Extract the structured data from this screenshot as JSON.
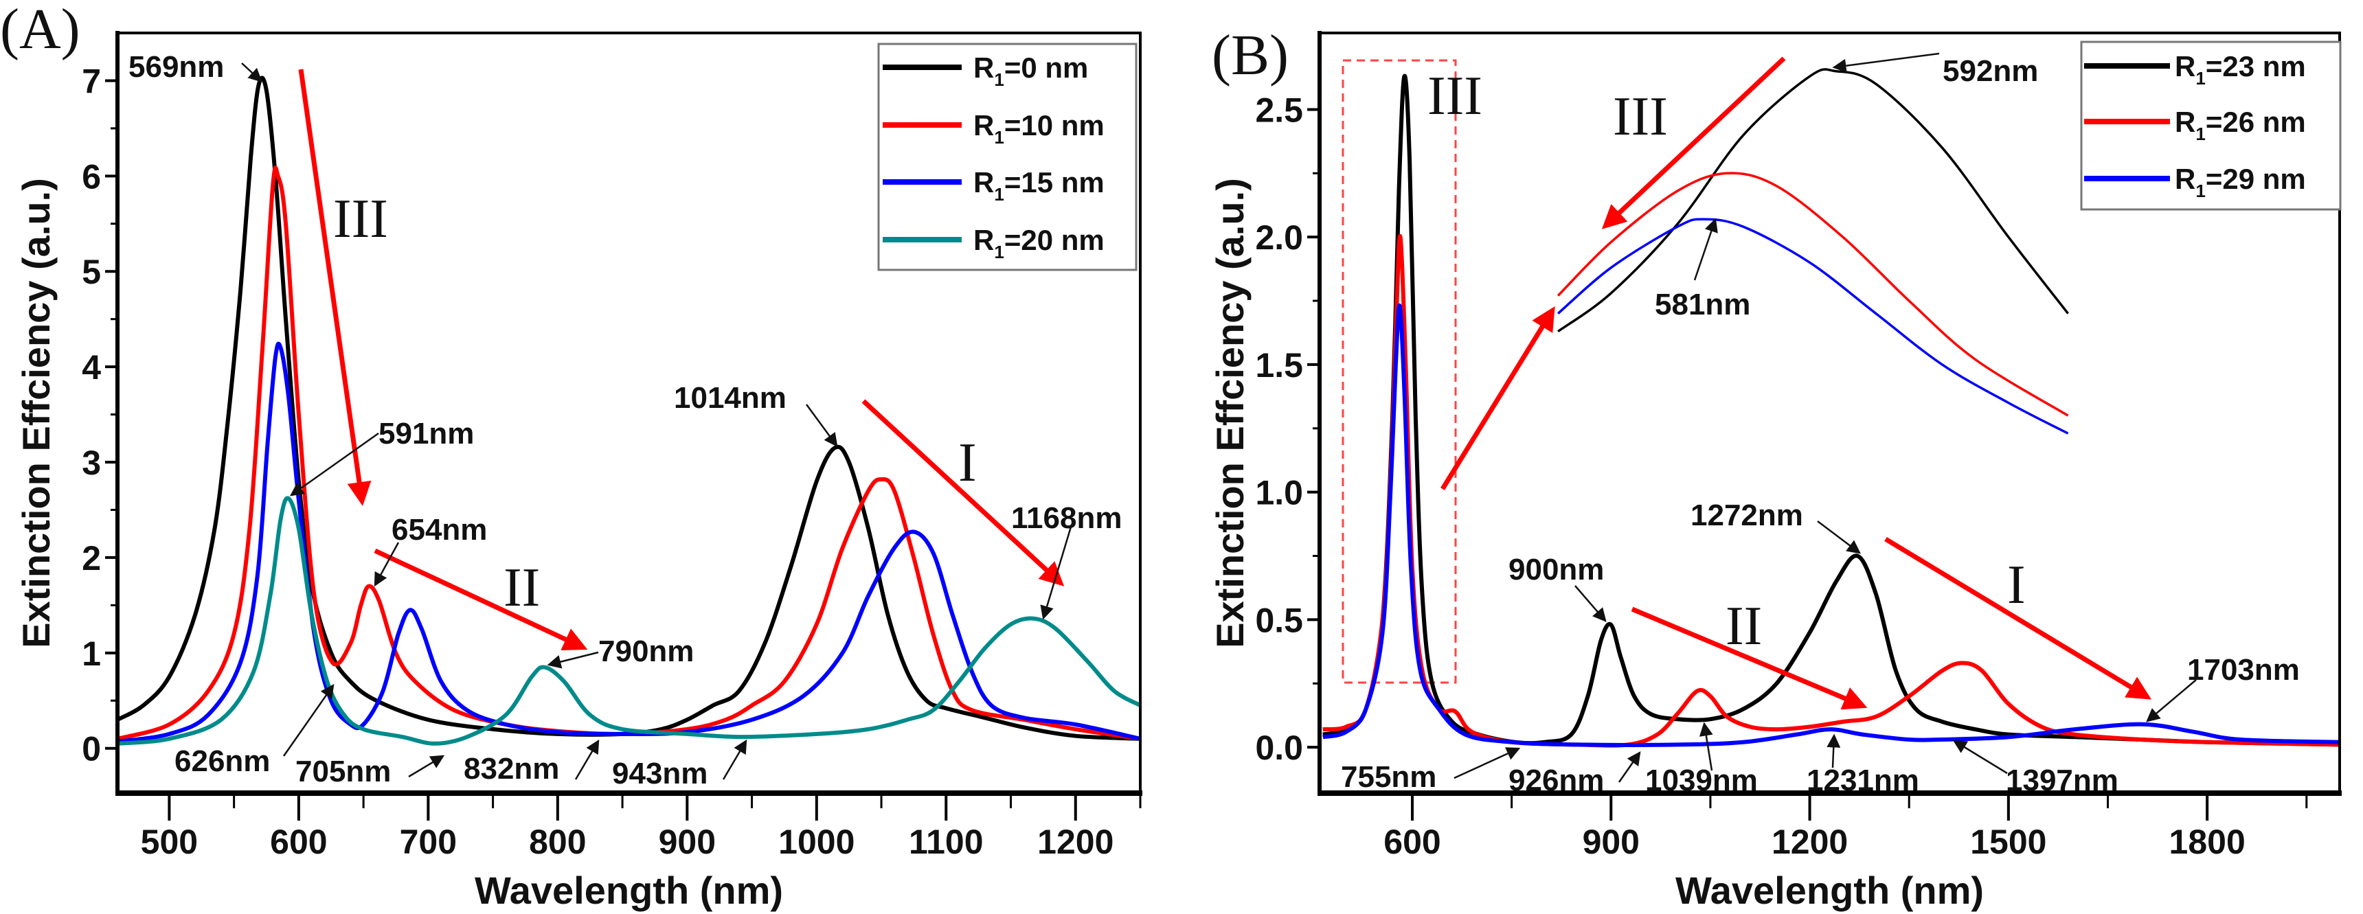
{
  "chart_data": [
    {
      "type": "line",
      "panel_label": "(A)",
      "xlabel": "Wavelength (nm)",
      "ylabel": "Extinction Effciency (a.u.)",
      "xlim": [
        460,
        1250
      ],
      "ylim": [
        -0.47,
        7.5
      ],
      "xticks": [
        "500",
        "600",
        "700",
        "800",
        "900",
        "1000",
        "1100",
        "1200"
      ],
      "xtick_values": [
        500,
        600,
        700,
        800,
        900,
        1000,
        1100,
        1200
      ],
      "xminor_values": [
        550,
        650,
        750,
        850,
        950,
        1050,
        1150,
        1250
      ],
      "yticks": [
        "0",
        "1",
        "2",
        "3",
        "4",
        "5",
        "6",
        "7"
      ],
      "ytick_values": [
        0,
        1,
        2,
        3,
        4,
        5,
        6,
        7
      ],
      "yminor_values": [
        0.5,
        1.5,
        2.5,
        3.5,
        4.5,
        5.5,
        6.5
      ],
      "legend_position": "top-right",
      "series": [
        {
          "name": "R1=0 nm",
          "label_main": "R",
          "label_sub": "1",
          "label_value": "=0 nm",
          "color": "#000000",
          "x": [
            460,
            480,
            500,
            520,
            535,
            545,
            555,
            563,
            569,
            575,
            582,
            590,
            600,
            610,
            625,
            640,
            660,
            700,
            750,
            800,
            850,
            880,
            900,
            920,
            940,
            960,
            980,
            1000,
            1014,
            1025,
            1040,
            1055,
            1070,
            1085,
            1100,
            1130,
            1160,
            1200,
            1250
          ],
          "y": [
            0.3,
            0.45,
            0.75,
            1.4,
            2.3,
            3.4,
            4.8,
            6.2,
            6.95,
            6.9,
            6.0,
            4.5,
            2.8,
            1.7,
            1.0,
            0.7,
            0.5,
            0.3,
            0.2,
            0.15,
            0.15,
            0.2,
            0.3,
            0.45,
            0.6,
            1.1,
            1.9,
            2.8,
            3.15,
            3.0,
            2.3,
            1.4,
            0.8,
            0.5,
            0.42,
            0.32,
            0.22,
            0.13,
            0.1
          ]
        },
        {
          "name": "R1=10 nm",
          "label_main": "R",
          "label_sub": "1",
          "label_value": "=10 nm",
          "color": "#ff0000",
          "x": [
            460,
            500,
            530,
            550,
            562,
            572,
            580,
            584,
            590,
            600,
            612,
            626,
            640,
            648,
            654,
            662,
            675,
            690,
            720,
            760,
            800,
            850,
            900,
            930,
            950,
            975,
            1000,
            1020,
            1040,
            1050,
            1060,
            1075,
            1090,
            1105,
            1120,
            1160,
            1200,
            1250
          ],
          "y": [
            0.1,
            0.25,
            0.6,
            1.2,
            2.3,
            4.2,
            5.9,
            6.0,
            5.5,
            3.5,
            1.6,
            0.9,
            1.1,
            1.5,
            1.7,
            1.55,
            1.0,
            0.7,
            0.4,
            0.25,
            0.18,
            0.15,
            0.2,
            0.3,
            0.45,
            0.7,
            1.3,
            2.1,
            2.7,
            2.82,
            2.7,
            2.0,
            1.2,
            0.6,
            0.4,
            0.3,
            0.2,
            0.1
          ]
        },
        {
          "name": "R1=15 nm",
          "label_main": "R",
          "label_sub": "1",
          "label_value": "=15 nm",
          "color": "#0000ff",
          "x": [
            460,
            500,
            530,
            555,
            568,
            576,
            582,
            586,
            592,
            600,
            612,
            625,
            640,
            650,
            665,
            677,
            686,
            695,
            710,
            730,
            760,
            800,
            850,
            900,
            950,
            990,
            1020,
            1040,
            1060,
            1075,
            1090,
            1105,
            1120,
            1135,
            1160,
            1200,
            1250
          ],
          "y": [
            0.07,
            0.15,
            0.35,
            0.9,
            1.8,
            3.2,
            4.1,
            4.2,
            3.7,
            2.6,
            1.2,
            0.5,
            0.25,
            0.25,
            0.6,
            1.2,
            1.45,
            1.25,
            0.7,
            0.4,
            0.25,
            0.17,
            0.15,
            0.17,
            0.3,
            0.55,
            1.0,
            1.6,
            2.1,
            2.27,
            2.05,
            1.4,
            0.8,
            0.45,
            0.32,
            0.25,
            0.1
          ]
        },
        {
          "name": "R1=20 nm",
          "label_main": "R",
          "label_sub": "1",
          "label_value": "=20 nm",
          "color": "#008b8b",
          "x": [
            460,
            500,
            540,
            565,
            578,
            586,
            592,
            600,
            610,
            622,
            635,
            650,
            680,
            705,
            730,
            760,
            780,
            790,
            805,
            825,
            850,
            900,
            943,
            1000,
            1040,
            1070,
            1090,
            1110,
            1130,
            1150,
            1168,
            1185,
            1210,
            1230,
            1250
          ],
          "y": [
            0.05,
            0.1,
            0.3,
            0.8,
            1.6,
            2.4,
            2.62,
            2.3,
            1.4,
            0.7,
            0.35,
            0.2,
            0.12,
            0.05,
            0.12,
            0.35,
            0.75,
            0.85,
            0.7,
            0.35,
            0.2,
            0.15,
            0.12,
            0.15,
            0.2,
            0.3,
            0.4,
            0.7,
            1.05,
            1.3,
            1.36,
            1.25,
            0.9,
            0.6,
            0.45
          ]
        }
      ],
      "annotations": [
        "569nm",
        "591nm",
        "654nm",
        "790nm",
        "626nm",
        "705nm",
        "832nm",
        "943nm",
        "1014nm",
        "1168nm"
      ],
      "mode_labels": [
        "III",
        "II",
        "I"
      ]
    },
    {
      "type": "line",
      "panel_label": "(B)",
      "xlabel": "Wavelength (nm)",
      "ylabel": "Extinction Effciency (a.u.)",
      "xlim": [
        460,
        2000
      ],
      "ylim": [
        -0.18,
        2.8
      ],
      "xticks": [
        "600",
        "900",
        "1200",
        "1500",
        "1800"
      ],
      "xtick_values": [
        600,
        900,
        1200,
        1500,
        1800
      ],
      "xminor_values": [
        750,
        1050,
        1350,
        1650,
        1950
      ],
      "yticks": [
        "0.0",
        "0.5",
        "1.0",
        "1.5",
        "2.0",
        "2.5"
      ],
      "ytick_values": [
        0,
        0.5,
        1.0,
        1.5,
        2.0,
        2.5
      ],
      "yminor_values": [
        0.25,
        0.75,
        1.25,
        1.75,
        2.25
      ],
      "legend_position": "top-right",
      "series": [
        {
          "name": "R1=23 nm",
          "label_main": "R",
          "label_sub": "1",
          "label_value": "=23 nm",
          "color": "#000000",
          "x": [
            465,
            500,
            530,
            555,
            570,
            580,
            588,
            596,
            605,
            615,
            630,
            660,
            700,
            755,
            800,
            840,
            865,
            885,
            900,
            915,
            935,
            960,
            1000,
            1050,
            1100,
            1150,
            1200,
            1240,
            1272,
            1300,
            1330,
            1360,
            1400,
            1450,
            1500,
            1600,
            1700,
            1800,
            2000
          ],
          "y": [
            0.05,
            0.07,
            0.15,
            0.5,
            1.3,
            2.2,
            2.63,
            2.3,
            1.3,
            0.6,
            0.25,
            0.1,
            0.05,
            0.02,
            0.02,
            0.05,
            0.2,
            0.42,
            0.48,
            0.35,
            0.2,
            0.13,
            0.11,
            0.11,
            0.15,
            0.25,
            0.45,
            0.65,
            0.75,
            0.6,
            0.3,
            0.15,
            0.1,
            0.07,
            0.05,
            0.04,
            0.03,
            0.02,
            0.01
          ]
        },
        {
          "name": "R1=26 nm",
          "label_main": "R",
          "label_sub": "1",
          "label_value": "=26 nm",
          "color": "#ff0000",
          "x": [
            465,
            500,
            530,
            555,
            568,
            576,
            582,
            590,
            600,
            615,
            640,
            665,
            690,
            750,
            850,
            926,
            970,
            1000,
            1030,
            1050,
            1075,
            1110,
            1150,
            1200,
            1250,
            1300,
            1350,
            1400,
            1430,
            1460,
            1500,
            1550,
            1600,
            1700,
            1800,
            2000
          ],
          "y": [
            0.07,
            0.08,
            0.15,
            0.5,
            1.1,
            1.7,
            2.0,
            1.5,
            0.7,
            0.3,
            0.15,
            0.14,
            0.06,
            0.02,
            0.01,
            0.01,
            0.05,
            0.13,
            0.22,
            0.2,
            0.12,
            0.08,
            0.07,
            0.08,
            0.1,
            0.12,
            0.2,
            0.3,
            0.33,
            0.3,
            0.17,
            0.08,
            0.05,
            0.03,
            0.02,
            0.01
          ]
        },
        {
          "name": "R1=29 nm",
          "label_main": "R",
          "label_sub": "1",
          "label_value": "=29 nm",
          "color": "#0000ff",
          "x": [
            465,
            500,
            530,
            555,
            567,
            575,
            581,
            588,
            598,
            612,
            640,
            680,
            750,
            850,
            1000,
            1100,
            1180,
            1231,
            1280,
            1350,
            1397,
            1500,
            1600,
            1703,
            1780,
            1850,
            2000
          ],
          "y": [
            0.04,
            0.06,
            0.15,
            0.45,
            1.0,
            1.5,
            1.73,
            1.4,
            0.7,
            0.3,
            0.15,
            0.05,
            0.02,
            0.01,
            0.01,
            0.02,
            0.05,
            0.07,
            0.05,
            0.03,
            0.03,
            0.04,
            0.07,
            0.09,
            0.06,
            0.03,
            0.02
          ]
        }
      ],
      "inset_series": [
        {
          "name": "R1=23 nm inset",
          "color": "#000000",
          "x": [
            820,
            900,
            1000,
            1100,
            1200,
            1240,
            1300,
            1400,
            1500,
            1590
          ],
          "y": [
            1.63,
            1.78,
            2.05,
            2.4,
            2.63,
            2.65,
            2.6,
            2.35,
            2.0,
            1.7
          ]
        },
        {
          "name": "R1=26 nm inset",
          "color": "#ff0000",
          "x": [
            820,
            900,
            1000,
            1075,
            1150,
            1250,
            1350,
            1450,
            1590
          ],
          "y": [
            1.77,
            1.98,
            2.18,
            2.25,
            2.2,
            2.0,
            1.75,
            1.52,
            1.3
          ]
        },
        {
          "name": "R1=29 nm inset",
          "color": "#0000ff",
          "x": [
            820,
            900,
            1000,
            1040,
            1100,
            1200,
            1300,
            1400,
            1500,
            1590
          ],
          "y": [
            1.7,
            1.88,
            2.04,
            2.07,
            2.04,
            1.9,
            1.7,
            1.5,
            1.35,
            1.23
          ]
        }
      ],
      "annotations": [
        "592nm",
        "581nm",
        "1272nm",
        "900nm",
        "1703nm",
        "755nm",
        "926nm",
        "1039nm",
        "1231nm",
        "1397nm"
      ],
      "mode_labels": [
        "III",
        "III",
        "II",
        "I"
      ]
    }
  ],
  "colors": {
    "arrow": "#ff0000",
    "text": "#111111"
  }
}
